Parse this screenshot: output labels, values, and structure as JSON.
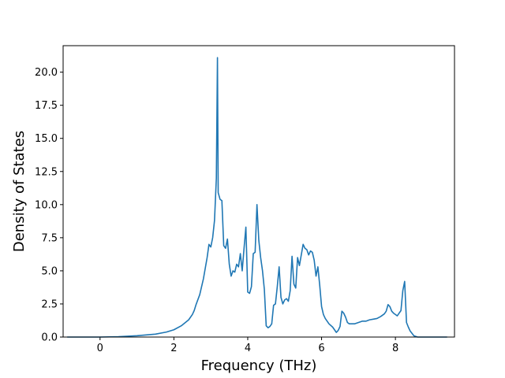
{
  "chart_data": {
    "type": "line",
    "title": "",
    "xlabel": "Frequency (THz)",
    "ylabel": "Density of States",
    "xlim": [
      -1.0,
      9.6
    ],
    "ylim": [
      0.0,
      22.0
    ],
    "xticks": [
      0,
      2,
      4,
      6,
      8
    ],
    "yticks": [
      0.0,
      2.5,
      5.0,
      7.5,
      10.0,
      12.5,
      15.0,
      17.5,
      20.0
    ],
    "ytick_labels": [
      "0.0",
      "2.5",
      "5.0",
      "7.5",
      "10.0",
      "12.5",
      "15.0",
      "17.5",
      "20.0"
    ],
    "grid": false,
    "legend": false,
    "series": [
      {
        "color": "#1f77b4",
        "x": [
          -0.89,
          0.0,
          0.5,
          1.0,
          1.5,
          1.8,
          2.0,
          2.2,
          2.4,
          2.5,
          2.55,
          2.6,
          2.7,
          2.8,
          2.85,
          2.9,
          2.95,
          3.0,
          3.05,
          3.1,
          3.15,
          3.18,
          3.2,
          3.25,
          3.3,
          3.35,
          3.4,
          3.45,
          3.5,
          3.55,
          3.6,
          3.65,
          3.7,
          3.75,
          3.8,
          3.85,
          3.9,
          3.95,
          4.0,
          4.05,
          4.1,
          4.15,
          4.2,
          4.25,
          4.3,
          4.35,
          4.4,
          4.45,
          4.5,
          4.55,
          4.6,
          4.65,
          4.7,
          4.75,
          4.8,
          4.85,
          4.9,
          4.95,
          5.0,
          5.05,
          5.1,
          5.15,
          5.2,
          5.25,
          5.3,
          5.35,
          5.4,
          5.45,
          5.5,
          5.55,
          5.6,
          5.65,
          5.7,
          5.75,
          5.8,
          5.85,
          5.9,
          5.95,
          6.0,
          6.05,
          6.1,
          6.15,
          6.2,
          6.3,
          6.4,
          6.45,
          6.5,
          6.55,
          6.6,
          6.65,
          6.7,
          6.75,
          6.8,
          6.9,
          7.0,
          7.1,
          7.2,
          7.3,
          7.4,
          7.5,
          7.6,
          7.7,
          7.75,
          7.8,
          7.85,
          7.9,
          7.95,
          8.0,
          8.05,
          8.1,
          8.15,
          8.2,
          8.25,
          8.3,
          8.35,
          8.4,
          8.5,
          8.6,
          8.7,
          9.0,
          9.4
        ],
        "y": [
          0.0,
          0.0,
          0.03,
          0.1,
          0.22,
          0.38,
          0.55,
          0.85,
          1.3,
          1.7,
          2.0,
          2.45,
          3.2,
          4.4,
          5.2,
          6.0,
          7.0,
          6.8,
          7.5,
          8.8,
          12.0,
          21.1,
          10.9,
          10.4,
          10.3,
          6.9,
          6.7,
          7.4,
          5.5,
          4.6,
          5.0,
          4.9,
          5.5,
          5.3,
          6.3,
          5.0,
          6.7,
          8.3,
          3.4,
          3.3,
          3.8,
          6.3,
          6.4,
          10.0,
          7.3,
          6.0,
          5.0,
          3.6,
          0.85,
          0.7,
          0.8,
          1.0,
          2.4,
          2.5,
          3.8,
          5.3,
          3.0,
          2.5,
          2.8,
          2.9,
          2.7,
          3.5,
          6.1,
          4.0,
          3.7,
          6.0,
          5.4,
          6.2,
          7.0,
          6.7,
          6.6,
          6.2,
          6.5,
          6.4,
          5.8,
          4.6,
          5.3,
          3.9,
          2.3,
          1.7,
          1.4,
          1.2,
          1.0,
          0.75,
          0.35,
          0.5,
          0.8,
          1.95,
          1.8,
          1.5,
          1.1,
          1.0,
          1.0,
          1.0,
          1.1,
          1.2,
          1.2,
          1.3,
          1.35,
          1.4,
          1.55,
          1.75,
          1.95,
          2.45,
          2.3,
          1.95,
          1.8,
          1.7,
          1.6,
          1.8,
          2.0,
          3.5,
          4.2,
          1.1,
          0.75,
          0.45,
          0.1,
          0.0,
          0.0,
          0.0,
          0.0
        ]
      }
    ]
  }
}
